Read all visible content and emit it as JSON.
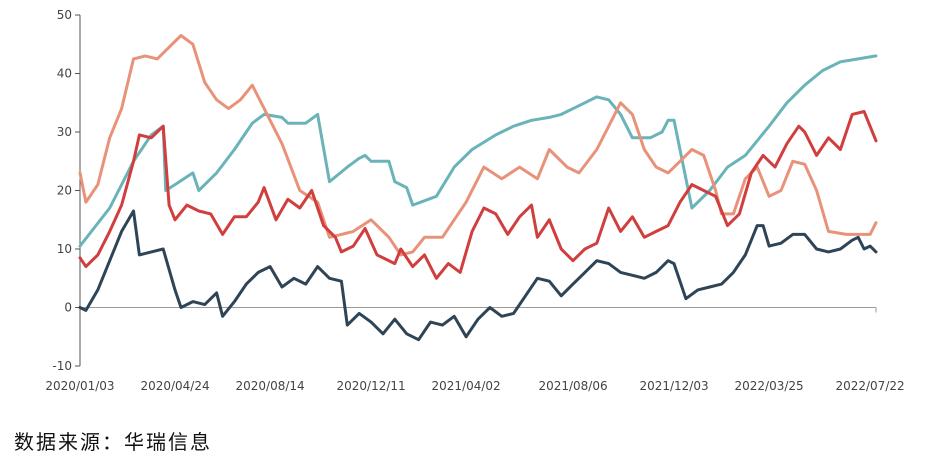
{
  "source_note": "数据来源：华瑞信息",
  "chart_data": {
    "type": "line",
    "title": "",
    "xlabel": "",
    "ylabel": "",
    "ylim": [
      -10,
      50
    ],
    "yticks": [
      -10,
      0,
      10,
      20,
      30,
      40,
      50
    ],
    "xlim": [
      "2020-01-03",
      "2022-07-29"
    ],
    "xtick_labels": [
      "2020/01/03",
      "2020/04/24",
      "2020/08/14",
      "2020/12/11",
      "2021/04/02",
      "2021/08/06",
      "2021/12/03",
      "2022/03/25",
      "2022/07/22"
    ],
    "xtick_dates": [
      "2020-01-03",
      "2020-04-24",
      "2020-08-14",
      "2020-12-11",
      "2021-04-02",
      "2021-08-06",
      "2021-12-03",
      "2022-03-25",
      "2022-07-22"
    ],
    "grid": false,
    "legend": "none",
    "series": [
      {
        "color": "#6ab3b8",
        "points": [
          [
            "2020-01-03",
            10.5
          ],
          [
            "2020-02-07",
            17
          ],
          [
            "2020-03-06",
            25
          ],
          [
            "2020-03-27",
            29.5
          ],
          [
            "2020-04-10",
            31
          ],
          [
            "2020-04-13",
            20
          ],
          [
            "2020-04-24",
            21
          ],
          [
            "2020-05-15",
            23
          ],
          [
            "2020-05-22",
            20
          ],
          [
            "2020-06-12",
            23
          ],
          [
            "2020-07-03",
            27
          ],
          [
            "2020-07-24",
            31.5
          ],
          [
            "2020-08-07",
            33
          ],
          [
            "2020-08-28",
            32.5
          ],
          [
            "2020-09-04",
            31.5
          ],
          [
            "2020-09-25",
            31.5
          ],
          [
            "2020-10-09",
            33
          ],
          [
            "2020-10-23",
            21.5
          ],
          [
            "2020-11-13",
            24
          ],
          [
            "2020-11-27",
            25.5
          ],
          [
            "2020-12-04",
            26
          ],
          [
            "2020-12-11",
            25
          ],
          [
            "2021-01-01",
            25
          ],
          [
            "2021-01-08",
            21.5
          ],
          [
            "2021-01-22",
            20.5
          ],
          [
            "2021-01-29",
            17.5
          ],
          [
            "2021-02-26",
            19
          ],
          [
            "2021-03-19",
            24
          ],
          [
            "2021-04-09",
            27
          ],
          [
            "2021-05-07",
            29.5
          ],
          [
            "2021-05-28",
            31
          ],
          [
            "2021-06-18",
            32
          ],
          [
            "2021-07-09",
            32.5
          ],
          [
            "2021-07-23",
            33
          ],
          [
            "2021-08-13",
            34.5
          ],
          [
            "2021-09-03",
            36
          ],
          [
            "2021-09-17",
            35.5
          ],
          [
            "2021-10-01",
            33
          ],
          [
            "2021-10-15",
            29
          ],
          [
            "2021-11-05",
            29
          ],
          [
            "2021-11-19",
            30
          ],
          [
            "2021-11-26",
            32
          ],
          [
            "2021-12-03",
            32
          ],
          [
            "2021-12-24",
            17
          ],
          [
            "2022-01-14",
            20
          ],
          [
            "2022-02-04",
            24
          ],
          [
            "2022-02-25",
            26
          ],
          [
            "2022-03-25",
            31
          ],
          [
            "2022-04-15",
            35
          ],
          [
            "2022-05-06",
            38
          ],
          [
            "2022-05-27",
            40.5
          ],
          [
            "2022-06-17",
            42
          ],
          [
            "2022-07-08",
            42.5
          ],
          [
            "2022-07-29",
            43
          ]
        ]
      },
      {
        "color": "#e8927a",
        "points": [
          [
            "2020-01-03",
            23
          ],
          [
            "2020-01-10",
            18
          ],
          [
            "2020-01-24",
            21
          ],
          [
            "2020-02-07",
            29
          ],
          [
            "2020-02-21",
            34
          ],
          [
            "2020-03-06",
            42.5
          ],
          [
            "2020-03-20",
            43
          ],
          [
            "2020-04-03",
            42.5
          ],
          [
            "2020-04-17",
            44.5
          ],
          [
            "2020-05-01",
            46.5
          ],
          [
            "2020-05-15",
            45
          ],
          [
            "2020-05-29",
            38.5
          ],
          [
            "2020-06-12",
            35.5
          ],
          [
            "2020-06-26",
            34
          ],
          [
            "2020-07-10",
            35.5
          ],
          [
            "2020-07-24",
            38
          ],
          [
            "2020-08-14",
            32
          ],
          [
            "2020-08-28",
            28
          ],
          [
            "2020-09-18",
            20
          ],
          [
            "2020-10-09",
            18
          ],
          [
            "2020-10-23",
            12
          ],
          [
            "2020-11-06",
            12.5
          ],
          [
            "2020-11-20",
            13
          ],
          [
            "2020-12-11",
            15
          ],
          [
            "2021-01-01",
            12
          ],
          [
            "2021-01-15",
            9
          ],
          [
            "2021-01-29",
            9.5
          ],
          [
            "2021-02-12",
            12
          ],
          [
            "2021-03-05",
            12
          ],
          [
            "2021-03-19",
            15
          ],
          [
            "2021-04-02",
            18
          ],
          [
            "2021-04-23",
            24
          ],
          [
            "2021-05-14",
            22
          ],
          [
            "2021-06-04",
            24
          ],
          [
            "2021-06-25",
            22
          ],
          [
            "2021-07-09",
            27
          ],
          [
            "2021-07-30",
            24
          ],
          [
            "2021-08-13",
            23
          ],
          [
            "2021-09-03",
            27
          ],
          [
            "2021-09-17",
            31
          ],
          [
            "2021-10-01",
            35
          ],
          [
            "2021-10-15",
            33
          ],
          [
            "2021-10-29",
            27
          ],
          [
            "2021-11-12",
            24
          ],
          [
            "2021-11-26",
            23
          ],
          [
            "2021-12-10",
            25
          ],
          [
            "2021-12-24",
            27
          ],
          [
            "2022-01-07",
            26
          ],
          [
            "2022-01-21",
            20
          ],
          [
            "2022-01-28",
            16
          ],
          [
            "2022-02-11",
            16
          ],
          [
            "2022-02-25",
            22
          ],
          [
            "2022-03-11",
            24
          ],
          [
            "2022-03-25",
            19
          ],
          [
            "2022-04-08",
            20
          ],
          [
            "2022-04-22",
            25
          ],
          [
            "2022-05-06",
            24.5
          ],
          [
            "2022-05-20",
            20
          ],
          [
            "2022-06-03",
            13
          ],
          [
            "2022-06-24",
            12.5
          ],
          [
            "2022-07-08",
            12.5
          ],
          [
            "2022-07-22",
            12.5
          ],
          [
            "2022-07-29",
            14.5
          ]
        ]
      },
      {
        "color": "#d13e3e",
        "points": [
          [
            "2020-01-03",
            8.5
          ],
          [
            "2020-01-10",
            7
          ],
          [
            "2020-01-24",
            9
          ],
          [
            "2020-02-07",
            13
          ],
          [
            "2020-02-21",
            17.5
          ],
          [
            "2020-03-06",
            25
          ],
          [
            "2020-03-13",
            29.5
          ],
          [
            "2020-03-27",
            29
          ],
          [
            "2020-04-10",
            31
          ],
          [
            "2020-04-17",
            17.5
          ],
          [
            "2020-04-24",
            15
          ],
          [
            "2020-05-08",
            17.5
          ],
          [
            "2020-05-22",
            16.5
          ],
          [
            "2020-06-05",
            16
          ],
          [
            "2020-06-19",
            12.5
          ],
          [
            "2020-07-03",
            15.5
          ],
          [
            "2020-07-17",
            15.5
          ],
          [
            "2020-07-31",
            18
          ],
          [
            "2020-08-07",
            20.5
          ],
          [
            "2020-08-21",
            15
          ],
          [
            "2020-09-04",
            18.5
          ],
          [
            "2020-09-18",
            17
          ],
          [
            "2020-10-02",
            20
          ],
          [
            "2020-10-16",
            14
          ],
          [
            "2020-10-30",
            12
          ],
          [
            "2020-11-06",
            9.5
          ],
          [
            "2020-11-20",
            10.5
          ],
          [
            "2020-12-04",
            13.5
          ],
          [
            "2020-12-18",
            9
          ],
          [
            "2021-01-08",
            7.5
          ],
          [
            "2021-01-15",
            10
          ],
          [
            "2021-01-29",
            7
          ],
          [
            "2021-02-12",
            9
          ],
          [
            "2021-02-26",
            5
          ],
          [
            "2021-03-12",
            7.5
          ],
          [
            "2021-03-26",
            6
          ],
          [
            "2021-04-09",
            13
          ],
          [
            "2021-04-23",
            17
          ],
          [
            "2021-05-07",
            16
          ],
          [
            "2021-05-21",
            12.5
          ],
          [
            "2021-06-04",
            15.5
          ],
          [
            "2021-06-18",
            17.5
          ],
          [
            "2021-06-25",
            12
          ],
          [
            "2021-07-09",
            15
          ],
          [
            "2021-07-23",
            10
          ],
          [
            "2021-08-06",
            8
          ],
          [
            "2021-08-20",
            10
          ],
          [
            "2021-09-03",
            11
          ],
          [
            "2021-09-17",
            17
          ],
          [
            "2021-10-01",
            13
          ],
          [
            "2021-10-15",
            15.5
          ],
          [
            "2021-10-29",
            12
          ],
          [
            "2021-11-12",
            13
          ],
          [
            "2021-11-26",
            14
          ],
          [
            "2021-12-10",
            18
          ],
          [
            "2021-12-24",
            21
          ],
          [
            "2022-01-07",
            20
          ],
          [
            "2022-01-21",
            19
          ],
          [
            "2022-02-04",
            14
          ],
          [
            "2022-02-18",
            16
          ],
          [
            "2022-03-04",
            23
          ],
          [
            "2022-03-18",
            26
          ],
          [
            "2022-04-01",
            24
          ],
          [
            "2022-04-15",
            28
          ],
          [
            "2022-04-29",
            31
          ],
          [
            "2022-05-06",
            30
          ],
          [
            "2022-05-20",
            26
          ],
          [
            "2022-06-03",
            29
          ],
          [
            "2022-06-17",
            27
          ],
          [
            "2022-07-01",
            33
          ],
          [
            "2022-07-15",
            33.5
          ],
          [
            "2022-07-29",
            28.5
          ]
        ]
      },
      {
        "color": "#2e4457",
        "points": [
          [
            "2020-01-03",
            0
          ],
          [
            "2020-01-10",
            -0.5
          ],
          [
            "2020-01-24",
            3
          ],
          [
            "2020-02-07",
            8
          ],
          [
            "2020-02-21",
            13
          ],
          [
            "2020-03-06",
            16.5
          ],
          [
            "2020-03-13",
            9
          ],
          [
            "2020-03-27",
            9.5
          ],
          [
            "2020-04-10",
            10
          ],
          [
            "2020-04-24",
            3
          ],
          [
            "2020-05-01",
            0
          ],
          [
            "2020-05-15",
            1
          ],
          [
            "2020-05-29",
            0.5
          ],
          [
            "2020-06-12",
            2.5
          ],
          [
            "2020-06-19",
            -1.5
          ],
          [
            "2020-07-03",
            1
          ],
          [
            "2020-07-17",
            4
          ],
          [
            "2020-07-31",
            6
          ],
          [
            "2020-08-14",
            7
          ],
          [
            "2020-08-28",
            3.5
          ],
          [
            "2020-09-11",
            5
          ],
          [
            "2020-09-25",
            4
          ],
          [
            "2020-10-09",
            7
          ],
          [
            "2020-10-23",
            5
          ],
          [
            "2020-11-06",
            4.5
          ],
          [
            "2020-11-13",
            -3
          ],
          [
            "2020-11-27",
            -1
          ],
          [
            "2020-12-11",
            -2.5
          ],
          [
            "2020-12-25",
            -4.5
          ],
          [
            "2021-01-08",
            -2
          ],
          [
            "2021-01-22",
            -4.5
          ],
          [
            "2021-02-05",
            -5.5
          ],
          [
            "2021-02-19",
            -2.5
          ],
          [
            "2021-03-05",
            -3
          ],
          [
            "2021-03-19",
            -1.5
          ],
          [
            "2021-04-02",
            -5
          ],
          [
            "2021-04-16",
            -2
          ],
          [
            "2021-04-30",
            0
          ],
          [
            "2021-05-14",
            -1.5
          ],
          [
            "2021-05-28",
            -1
          ],
          [
            "2021-06-11",
            2
          ],
          [
            "2021-06-25",
            5
          ],
          [
            "2021-07-09",
            4.5
          ],
          [
            "2021-07-23",
            2
          ],
          [
            "2021-08-06",
            4
          ],
          [
            "2021-08-20",
            6
          ],
          [
            "2021-09-03",
            8
          ],
          [
            "2021-09-17",
            7.5
          ],
          [
            "2021-10-01",
            6
          ],
          [
            "2021-10-15",
            5.5
          ],
          [
            "2021-10-29",
            5
          ],
          [
            "2021-11-12",
            6
          ],
          [
            "2021-11-26",
            8
          ],
          [
            "2021-12-03",
            7.5
          ],
          [
            "2021-12-17",
            1.5
          ],
          [
            "2021-12-31",
            3
          ],
          [
            "2022-01-14",
            3.5
          ],
          [
            "2022-01-28",
            4
          ],
          [
            "2022-02-11",
            6
          ],
          [
            "2022-02-25",
            9
          ],
          [
            "2022-03-11",
            14
          ],
          [
            "2022-03-18",
            14
          ],
          [
            "2022-03-25",
            10.5
          ],
          [
            "2022-04-08",
            11
          ],
          [
            "2022-04-22",
            12.5
          ],
          [
            "2022-05-06",
            12.5
          ],
          [
            "2022-05-20",
            10
          ],
          [
            "2022-06-03",
            9.5
          ],
          [
            "2022-06-17",
            10
          ],
          [
            "2022-07-01",
            11.5
          ],
          [
            "2022-07-08",
            12
          ],
          [
            "2022-07-15",
            10
          ],
          [
            "2022-07-22",
            10.5
          ],
          [
            "2022-07-29",
            9.5
          ]
        ]
      }
    ]
  }
}
